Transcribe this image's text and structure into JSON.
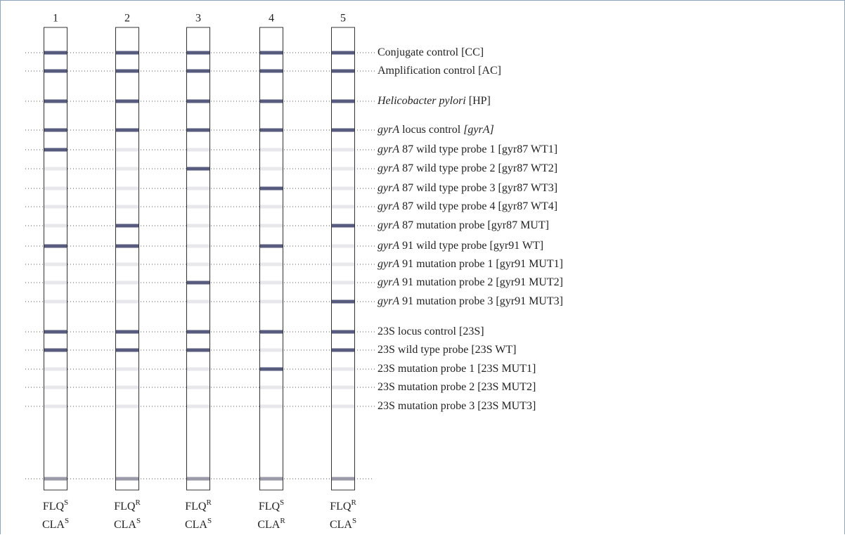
{
  "drug_1": "FLQ",
  "drug_2": "CLA",
  "strips": [
    {
      "number": "1",
      "flq": "S",
      "cla": "S"
    },
    {
      "number": "2",
      "flq": "R",
      "cla": "S"
    },
    {
      "number": "3",
      "flq": "R",
      "cla": "S"
    },
    {
      "number": "4",
      "flq": "S",
      "cla": "R"
    },
    {
      "number": "5",
      "flq": "R",
      "cla": "S"
    }
  ],
  "rows": [
    {
      "text": "Conjugate control [CC]"
    },
    {
      "text": "Amplification control [AC]"
    },
    {
      "prefix": "Helicobacter pylori",
      "text": "[HP]"
    },
    {
      "prefix": "gyrA",
      "text": "locus control",
      "suffix": "[gyrA]"
    },
    {
      "prefix": "gyrA",
      "text": "87 wild type probe 1 [gyr87 WT1]"
    },
    {
      "prefix": "gyrA",
      "text": "87 wild type probe 2 [gyr87 WT2]"
    },
    {
      "prefix": "gyrA",
      "text": "87 wild type probe 3 [gyr87 WT3]"
    },
    {
      "prefix": "gyrA",
      "text": "87 wild type probe 4 [gyr87 WT4]"
    },
    {
      "prefix": "gyrA",
      "text": "87 mutation probe [gyr87 MUT]"
    },
    {
      "prefix": "gyrA",
      "text": "91 wild type probe [gyr91 WT]"
    },
    {
      "prefix": "gyrA",
      "text": "91 mutation probe 1 [gyr91 MUT1]"
    },
    {
      "prefix": "gyrA",
      "text": "91 mutation probe 2 [gyr91 MUT2]"
    },
    {
      "prefix": "gyrA",
      "text": "91 mutation probe 3 [gyr91 MUT3]"
    },
    {
      "text": "23S locus control [23S]"
    },
    {
      "text": "23S wild type probe [23S WT]"
    },
    {
      "text": "23S mutation probe 1 [23S MUT1]"
    },
    {
      "text": "23S mutation probe 2 [23S MUT2]"
    },
    {
      "text": "23S mutation probe 3 [23S MUT3]"
    }
  ]
}
